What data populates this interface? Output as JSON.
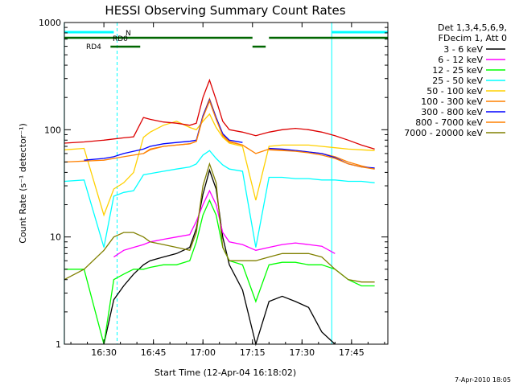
{
  "chart_data": {
    "type": "line",
    "title": "HESSI Observing Summary Count Rates",
    "xlabel": "Start Time (12-Apr-04 16:18:02)",
    "ylabel": "Count Rate (s⁻¹ detector⁻¹)",
    "x_ticks": [
      "16:30",
      "16:45",
      "17:00",
      "17:15",
      "17:30",
      "17:45"
    ],
    "y_ticks": [
      "1",
      "10",
      "100",
      "1000"
    ],
    "y_scale": "log",
    "ylim": [
      1,
      1000
    ],
    "xlim": [
      "16:18:02",
      "17:56"
    ],
    "grid": false,
    "legend_placement": "right",
    "legend_header": [
      "Det 1,3,4,5,6,9,",
      "FDecim 1, Att 0"
    ],
    "footer": "7-Apr-2010 18:05",
    "x": [
      "16:18",
      "16:24",
      "16:30",
      "16:33",
      "16:36",
      "16:39",
      "16:42",
      "16:44",
      "16:48",
      "16:52",
      "16:56",
      "16:58",
      "17:00",
      "17:02",
      "17:04",
      "17:06",
      "17:08",
      "17:12",
      "17:16",
      "17:20",
      "17:24",
      "17:28",
      "17:32",
      "17:36",
      "17:40",
      "17:44",
      "17:48",
      "17:52",
      "17:56"
    ],
    "series": [
      {
        "name": "3 - 6 keV",
        "color": "#000000",
        "values": [
          null,
          null,
          1.0,
          2.6,
          3.5,
          4.5,
          5.5,
          6.0,
          6.5,
          7.0,
          8.0,
          12.0,
          25.0,
          42.0,
          28.0,
          10.0,
          5.5,
          3.2,
          1.0,
          2.5,
          2.8,
          2.5,
          2.2,
          1.3,
          1.0,
          null,
          null,
          null,
          null
        ]
      },
      {
        "name": "6 - 12 keV",
        "color": "#ff00ff",
        "values": [
          null,
          null,
          null,
          6.5,
          7.5,
          8.0,
          8.5,
          9.0,
          9.5,
          10.0,
          10.5,
          14.0,
          20.0,
          27.0,
          20.0,
          11.0,
          9.0,
          8.5,
          7.5,
          8.0,
          8.5,
          8.8,
          8.5,
          8.2,
          7.0,
          null,
          null,
          null,
          null
        ]
      },
      {
        "name": "12 - 25 keV",
        "color": "#00ff00",
        "values": [
          5.0,
          5.0,
          1.0,
          4.0,
          4.5,
          5.0,
          5.0,
          5.2,
          5.5,
          5.5,
          6.0,
          9.0,
          16.0,
          22.0,
          16.0,
          8.0,
          6.0,
          5.5,
          2.5,
          5.5,
          5.8,
          5.8,
          5.5,
          5.5,
          5.0,
          4.0,
          3.5,
          3.5,
          null
        ]
      },
      {
        "name": "25 - 50 keV",
        "color": "#00ffff",
        "values": [
          33.0,
          34.0,
          8.0,
          24.0,
          26.0,
          27.0,
          38.0,
          39.0,
          41.0,
          43.0,
          45.0,
          48.0,
          58.0,
          64.0,
          54.0,
          47.0,
          43.0,
          41.0,
          8.0,
          36.0,
          36.0,
          35.0,
          35.0,
          34.0,
          34.0,
          33.0,
          33.0,
          32.0,
          null
        ]
      },
      {
        "name": "50 - 100 keV",
        "color": "#ffd000",
        "values": [
          65.0,
          67.0,
          16.0,
          28.0,
          32.0,
          40.0,
          85.0,
          95.0,
          110.0,
          120.0,
          105.0,
          100.0,
          120.0,
          140.0,
          105.0,
          85.0,
          75.0,
          70.0,
          22.0,
          70.0,
          72.0,
          72.0,
          72.0,
          70.0,
          68.0,
          66.0,
          65.0,
          64.0,
          null
        ]
      },
      {
        "name": "100 - 300 keV",
        "color": "#ff8000",
        "values": [
          50.0,
          51.0,
          52.0,
          54.0,
          56.0,
          58.0,
          60.0,
          66.0,
          70.0,
          72.0,
          74.0,
          78.0,
          135.0,
          195.0,
          130.0,
          90.0,
          78.0,
          72.0,
          60.0,
          66.0,
          65.0,
          64.0,
          62.0,
          60.0,
          56.0,
          50.0,
          46.0,
          43.0,
          null
        ]
      },
      {
        "name": "300 - 800 keV",
        "color": "#0000ff",
        "values": [
          null,
          52.0,
          54.0,
          56.0,
          60.0,
          63.0,
          66.0,
          70.0,
          74.0,
          76.0,
          78.0,
          80.0,
          135.0,
          190.0,
          130.0,
          92.0,
          80.0,
          76.0,
          null,
          67.0,
          66.0,
          64.0,
          62.0,
          60.0,
          55.0,
          48.0,
          45.0,
          44.0,
          null
        ]
      },
      {
        "name": "800 - 7000 keV",
        "color": "#ff8000",
        "values": [
          null,
          null,
          null,
          null,
          null,
          null,
          60.0,
          65.0,
          70.0,
          72.0,
          74.0,
          78.0,
          130.0,
          185.0,
          125.0,
          88.0,
          77.0,
          72.0,
          null,
          65.0,
          64.0,
          63.0,
          61.0,
          58.0,
          54.0,
          48.0,
          45.0,
          43.0,
          null
        ]
      },
      {
        "name": "7000 - 20000 keV",
        "color": "#808000",
        "values": [
          4.0,
          5.0,
          7.5,
          10.0,
          11.0,
          11.0,
          10.0,
          9.0,
          8.5,
          8.0,
          7.5,
          11.0,
          30.0,
          48.0,
          32.0,
          8.0,
          6.0,
          6.0,
          6.0,
          6.5,
          7.0,
          7.0,
          7.0,
          6.5,
          5.0,
          4.0,
          3.8,
          3.8,
          null
        ]
      },
      {
        "name": "",
        "color": "#dd0000",
        "values": [
          75.0,
          77.0,
          80.0,
          82.0,
          84.0,
          86.0,
          130.0,
          125.0,
          118.0,
          115.0,
          110.0,
          115.0,
          200.0,
          290.0,
          190.0,
          120.0,
          100.0,
          95.0,
          88.0,
          95.0,
          100.0,
          103.0,
          100.0,
          95.0,
          88.0,
          80.0,
          72.0,
          66.0,
          null
        ]
      }
    ],
    "status_bars": [
      {
        "label": "",
        "color": "#00ffff",
        "segments": [
          [
            "16:18",
            "16:33"
          ],
          [
            "17:39",
            "17:56"
          ]
        ]
      },
      {
        "label": "N",
        "color": "#00ffff",
        "segments": []
      },
      {
        "label": "RD0",
        "color": "#006600",
        "segments": [
          [
            "16:18",
            "17:15"
          ],
          [
            "17:20",
            "17:56"
          ]
        ]
      },
      {
        "label": "RD4",
        "color": "#006600",
        "segments": [
          [
            "16:32",
            "16:41"
          ],
          [
            "17:15",
            "17:19"
          ]
        ]
      }
    ],
    "event_lines": [
      {
        "time": "16:18",
        "style": "solid"
      },
      {
        "time": "16:34",
        "style": "dashed"
      },
      {
        "time": "17:39",
        "style": "solid"
      },
      {
        "time": "17:56",
        "style": "dashed"
      }
    ]
  }
}
